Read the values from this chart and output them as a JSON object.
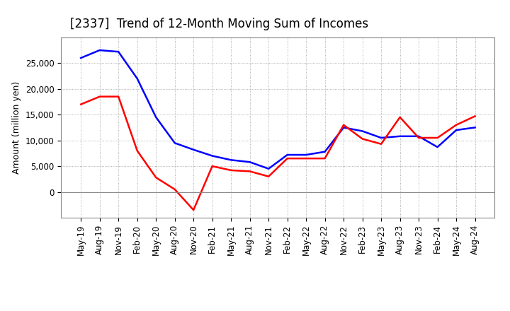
{
  "title": "[2337]  Trend of 12-Month Moving Sum of Incomes",
  "ylabel": "Amount (million yen)",
  "x_labels": [
    "May-19",
    "Aug-19",
    "Nov-19",
    "Feb-20",
    "May-20",
    "Aug-20",
    "Nov-20",
    "Feb-21",
    "May-21",
    "Aug-21",
    "Nov-21",
    "Feb-22",
    "May-22",
    "Aug-22",
    "Nov-22",
    "Feb-23",
    "May-23",
    "Aug-23",
    "Nov-23",
    "Feb-24",
    "May-24",
    "Aug-24"
  ],
  "ordinary_income": [
    26000,
    27500,
    27200,
    22000,
    14500,
    9500,
    8200,
    7000,
    6200,
    5800,
    4500,
    7200,
    7200,
    7800,
    12500,
    11800,
    10500,
    10800,
    10800,
    8700,
    12000,
    12500
  ],
  "net_income": [
    17000,
    18500,
    18500,
    8000,
    2800,
    500,
    -3500,
    5000,
    4200,
    4000,
    3000,
    6500,
    6500,
    6500,
    13000,
    10300,
    9300,
    14500,
    10500,
    10500,
    13000,
    14700
  ],
  "ordinary_color": "#0000FF",
  "net_color": "#FF0000",
  "ylim_min": -5000,
  "ylim_max": 30000,
  "yticks": [
    0,
    5000,
    10000,
    15000,
    20000,
    25000
  ],
  "background_color": "#FFFFFF",
  "grid_color": "#999999",
  "title_fontsize": 12,
  "label_fontsize": 9,
  "tick_fontsize": 8.5,
  "line_width": 1.8
}
